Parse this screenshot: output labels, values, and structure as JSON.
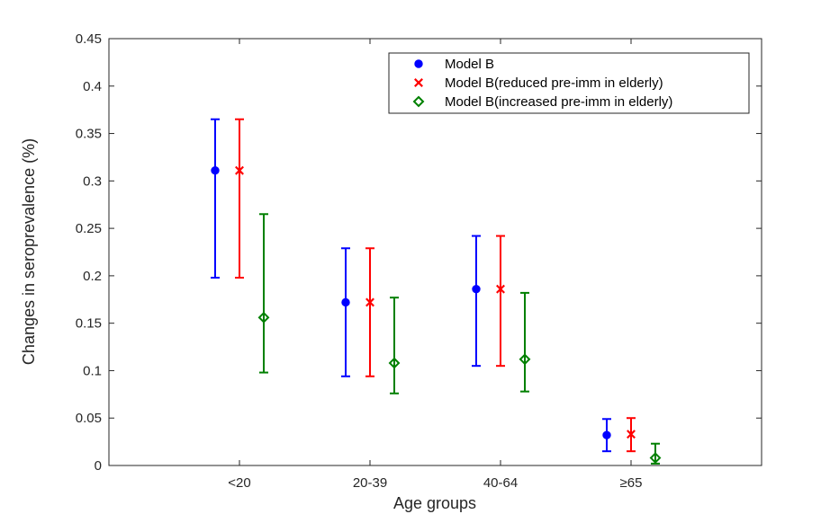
{
  "chart_data": {
    "type": "scatter",
    "subtype": "errorbar",
    "xlabel": "Age groups",
    "ylabel": "Changes in seroprevalence (%)",
    "categories": [
      "<20",
      "20-39",
      "40-64",
      "≥65"
    ],
    "ylim": [
      0,
      0.45
    ],
    "yticks": [
      "0",
      "0.05",
      "0.1",
      "0.15",
      "0.2",
      "0.25",
      "0.3",
      "0.35",
      "0.4",
      "0.45"
    ],
    "grid": false,
    "legend_position": "top-right",
    "series": [
      {
        "name": "Model B",
        "color": "#0000ff",
        "marker": "dot",
        "values": [
          0.311,
          0.172,
          0.186,
          0.032
        ],
        "lower": [
          0.198,
          0.094,
          0.105,
          0.015
        ],
        "upper": [
          0.365,
          0.229,
          0.242,
          0.049
        ]
      },
      {
        "name": "Model B(reduced pre-imm in elderly)",
        "color": "#ff0000",
        "marker": "x",
        "values": [
          0.311,
          0.172,
          0.186,
          0.033
        ],
        "lower": [
          0.198,
          0.094,
          0.105,
          0.015
        ],
        "upper": [
          0.365,
          0.229,
          0.242,
          0.05
        ]
      },
      {
        "name": "Model B(increased pre-imm in elderly)",
        "color": "#008000",
        "marker": "diamond",
        "values": [
          0.156,
          0.108,
          0.112,
          0.008
        ],
        "lower": [
          0.098,
          0.076,
          0.078,
          0.002
        ],
        "upper": [
          0.265,
          0.177,
          0.182,
          0.023
        ]
      }
    ]
  }
}
